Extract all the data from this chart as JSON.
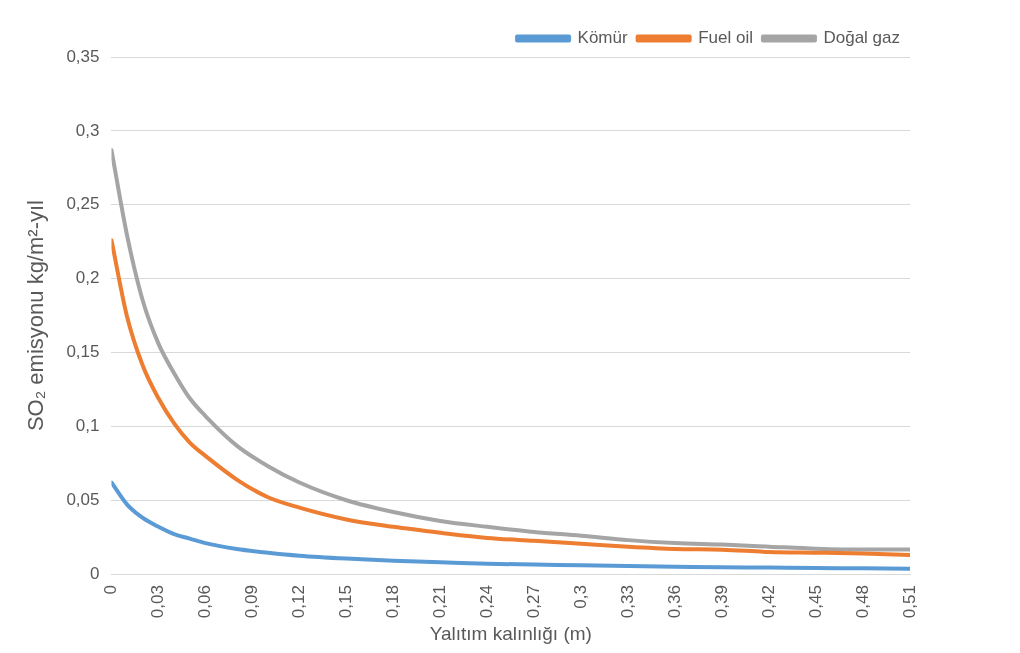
{
  "chart_data": {
    "type": "line",
    "xlabel": "Yalıtım kalınlığı (m)",
    "ylabel": "SO₂ emisyonu kg/m²-yıl",
    "x": [
      0,
      0.01,
      0.02,
      0.03,
      0.04,
      0.05,
      0.06,
      0.08,
      0.1,
      0.12,
      0.15,
      0.18,
      0.21,
      0.24,
      0.27,
      0.3,
      0.33,
      0.36,
      0.39,
      0.42,
      0.45,
      0.48,
      0.51
    ],
    "series": [
      {
        "name": "Kömür",
        "color": "#5b9bd5",
        "values": [
          0.062,
          0.047,
          0.038,
          0.032,
          0.027,
          0.024,
          0.021,
          0.017,
          0.0145,
          0.0125,
          0.0105,
          0.009,
          0.008,
          0.007,
          0.0065,
          0.006,
          0.0055,
          0.005,
          0.0047,
          0.0044,
          0.0041,
          0.0039,
          0.0037
        ]
      },
      {
        "name": "Fuel oil",
        "color": "#ed7d31",
        "values": [
          0.226,
          0.174,
          0.141,
          0.119,
          0.102,
          0.089,
          0.08,
          0.064,
          0.052,
          0.045,
          0.037,
          0.032,
          0.028,
          0.0245,
          0.0225,
          0.0205,
          0.0185,
          0.017,
          0.0165,
          0.015,
          0.0145,
          0.014,
          0.013
        ]
      },
      {
        "name": "Doğal gaz",
        "color": "#a5a5a5",
        "values": [
          0.287,
          0.229,
          0.185,
          0.156,
          0.136,
          0.119,
          0.107,
          0.087,
          0.073,
          0.062,
          0.05,
          0.042,
          0.036,
          0.032,
          0.0285,
          0.026,
          0.023,
          0.021,
          0.02,
          0.0186,
          0.0172,
          0.0166,
          0.0166
        ]
      }
    ],
    "xlim": [
      0,
      0.51
    ],
    "xticks": [
      0,
      {
        "value": 0.03,
        "label": "0,03"
      },
      {
        "value": 0.06,
        "label": "0,06"
      },
      {
        "value": 0.09,
        "label": "0,09"
      },
      {
        "value": 0.12,
        "label": "0,12"
      },
      {
        "value": 0.15,
        "label": "0,15"
      },
      {
        "value": 0.18,
        "label": "0,18"
      },
      {
        "value": 0.21,
        "label": "0,21"
      },
      {
        "value": 0.24,
        "label": "0,24"
      },
      {
        "value": 0.27,
        "label": "0,27"
      },
      {
        "value": 0.3,
        "label": "0,3"
      },
      {
        "value": 0.33,
        "label": "0,33"
      },
      {
        "value": 0.36,
        "label": "0,36"
      },
      {
        "value": 0.39,
        "label": "0,39"
      },
      {
        "value": 0.42,
        "label": "0,42"
      },
      {
        "value": 0.45,
        "label": "0,45"
      },
      {
        "value": 0.48,
        "label": "0,48"
      },
      {
        "value": 0.51,
        "label": "0,51"
      }
    ],
    "ylim": [
      0,
      0.35
    ],
    "yticks": [
      0,
      {
        "value": 0.05,
        "label": "0,05"
      },
      {
        "value": 0.1,
        "label": "0,1"
      },
      {
        "value": 0.15,
        "label": "0,15"
      },
      {
        "value": 0.2,
        "label": "0,2"
      },
      {
        "value": 0.25,
        "label": "0,25"
      },
      {
        "value": 0.3,
        "label": "0,3"
      },
      {
        "value": 0.35,
        "label": "0,35"
      }
    ],
    "grid": "y",
    "legend": "top",
    "marker": "none",
    "line_style": "solid"
  }
}
